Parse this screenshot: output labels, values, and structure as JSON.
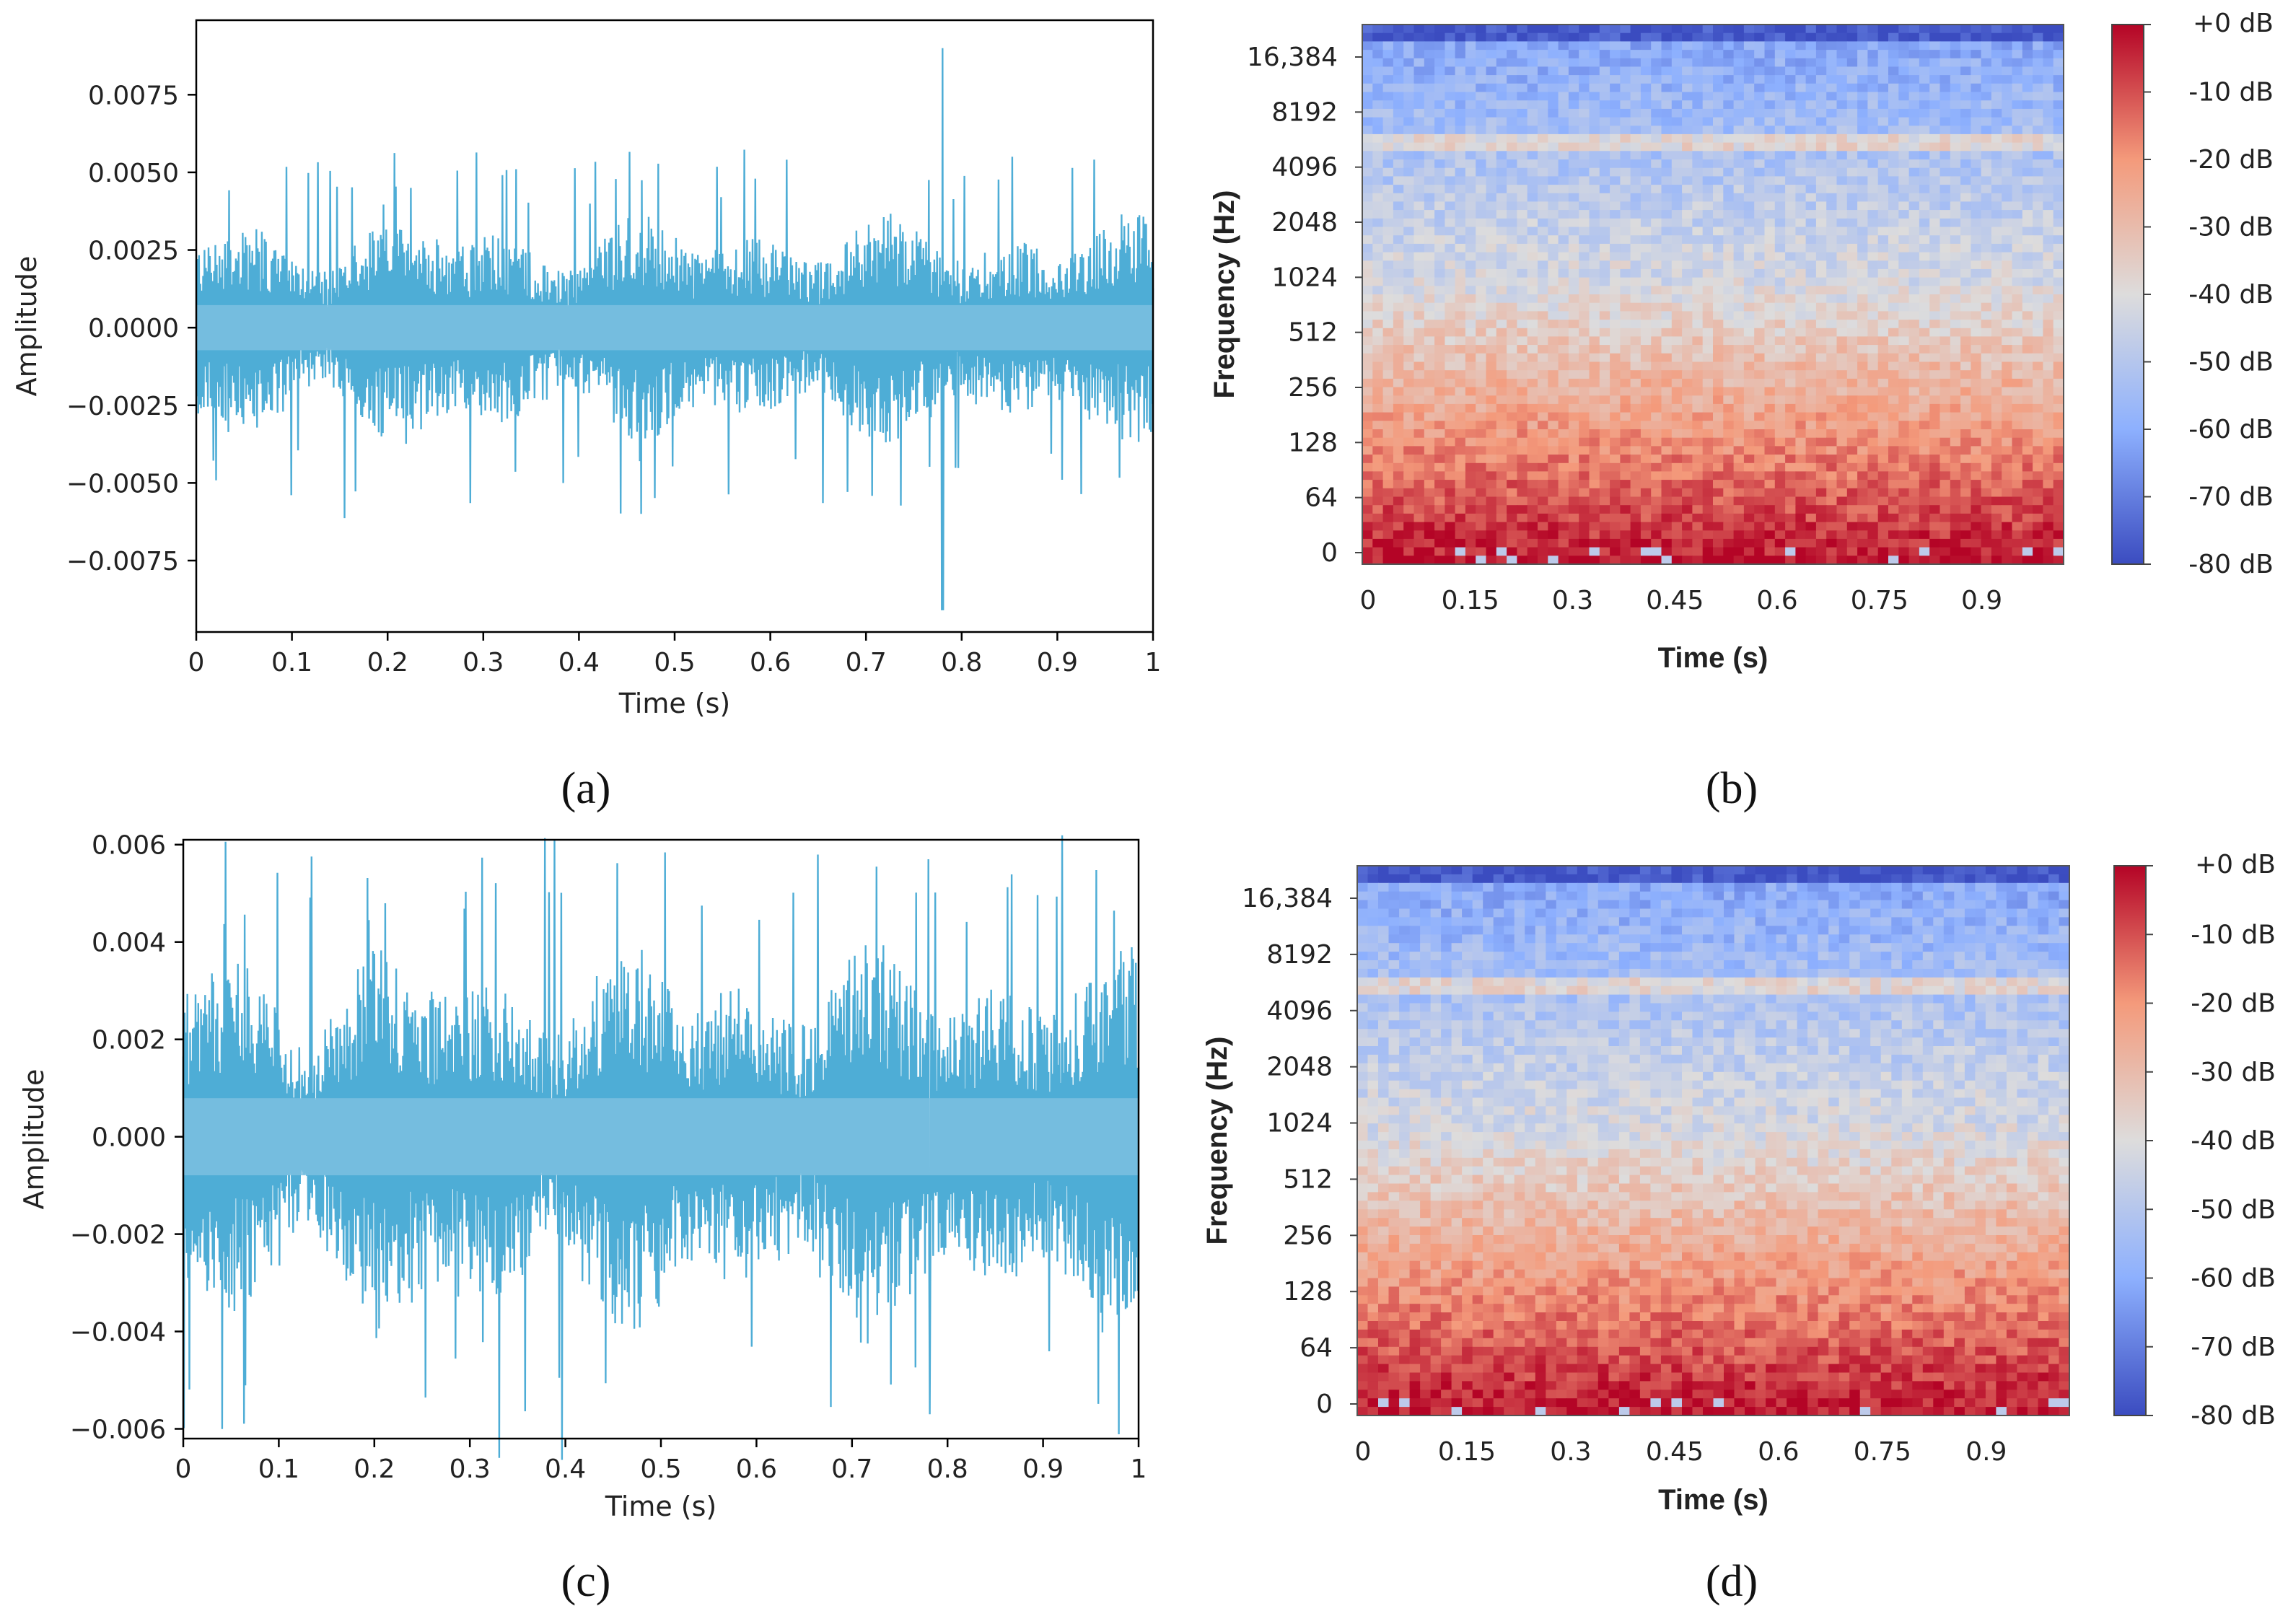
{
  "chart_data": [
    {
      "type": "line",
      "panel": "a",
      "caption": "(a)",
      "xlabel": "Time (s)",
      "ylabel": "Amplitude",
      "xlim": [
        0,
        1
      ],
      "ylim": [
        -0.0098,
        0.0099
      ],
      "xticks": [
        0,
        0.1,
        0.2,
        0.3,
        0.4,
        0.5,
        0.6,
        0.7,
        0.8,
        0.9,
        1
      ],
      "xtick_labels": [
        "0",
        "0.1",
        "0.2",
        "0.3",
        "0.4",
        "0.5",
        "0.6",
        "0.7",
        "0.8",
        "0.9",
        "1"
      ],
      "yticks": [
        0.0075,
        0.005,
        0.0025,
        0,
        -0.0025,
        -0.005,
        -0.0075
      ],
      "ytick_labels": [
        "0.0075",
        "0.0050",
        "0.0025",
        "0.0000",
        "−0.0025",
        "−0.0050",
        "−0.0075"
      ],
      "series": [
        {
          "name": "waveform",
          "color": "#2f9fcf",
          "peak_max": 0.009,
          "peak_min": -0.0091,
          "peak_time": 0.78,
          "typical_envelope": 0.0033
        }
      ]
    },
    {
      "type": "heatmap",
      "panel": "b",
      "caption": "(b)",
      "xlabel": "Time (s)",
      "ylabel": "Frequency (Hz)",
      "xticks": [
        0,
        0.15,
        0.3,
        0.45,
        0.6,
        0.75,
        0.9
      ],
      "xtick_labels": [
        "0",
        "0.15",
        "0.3",
        "0.45",
        "0.6",
        "0.75",
        "0.9"
      ],
      "yticks": [
        "16,384",
        "8192",
        "4096",
        "2048",
        "1024",
        "512",
        "256",
        "128",
        "64",
        "0"
      ],
      "colorbar": {
        "label_ticks": [
          "+0 dB",
          "-10 dB",
          "-20 dB",
          "-30 dB",
          "-40 dB",
          "-50 dB",
          "-60 dB",
          "-70 dB",
          "-80 dB"
        ],
        "range": [
          -80,
          0
        ],
        "cmap": "coolwarm"
      }
    },
    {
      "type": "line",
      "panel": "c",
      "caption": "(c)",
      "xlabel": "Time (s)",
      "ylabel": "Amplitude",
      "xlim": [
        0,
        1
      ],
      "ylim": [
        -0.0062,
        0.0061
      ],
      "xticks": [
        0,
        0.1,
        0.2,
        0.3,
        0.4,
        0.5,
        0.6,
        0.7,
        0.8,
        0.9,
        1
      ],
      "xtick_labels": [
        "0",
        "0.1",
        "0.2",
        "0.3",
        "0.4",
        "0.5",
        "0.6",
        "0.7",
        "0.8",
        "0.9",
        "1"
      ],
      "yticks": [
        0.006,
        0.004,
        0.002,
        0,
        -0.002,
        -0.004,
        -0.006
      ],
      "ytick_labels": [
        "0.006",
        "0.004",
        "0.002",
        "0.000",
        "−0.002",
        "−0.004",
        "−0.006"
      ],
      "series": [
        {
          "name": "waveform",
          "color": "#2f9fcf",
          "peak_max": 0.0057,
          "peak_min": -0.0057,
          "typical_envelope": 0.0036
        }
      ]
    },
    {
      "type": "heatmap",
      "panel": "d",
      "caption": "(d)",
      "xlabel": "Time (s)",
      "ylabel": "Frequency (Hz)",
      "xticks": [
        0,
        0.15,
        0.3,
        0.45,
        0.6,
        0.75,
        0.9
      ],
      "xtick_labels": [
        "0",
        "0.15",
        "0.3",
        "0.45",
        "0.6",
        "0.75",
        "0.9"
      ],
      "yticks": [
        "16,384",
        "8192",
        "4096",
        "2048",
        "1024",
        "512",
        "256",
        "128",
        "64",
        "0"
      ],
      "colorbar": {
        "label_ticks": [
          "+0 dB",
          "-10 dB",
          "-20 dB",
          "-30 dB",
          "-40 dB",
          "-50 dB",
          "-60 dB",
          "-70 dB",
          "-80 dB"
        ],
        "range": [
          -80,
          0
        ],
        "cmap": "coolwarm"
      }
    }
  ]
}
